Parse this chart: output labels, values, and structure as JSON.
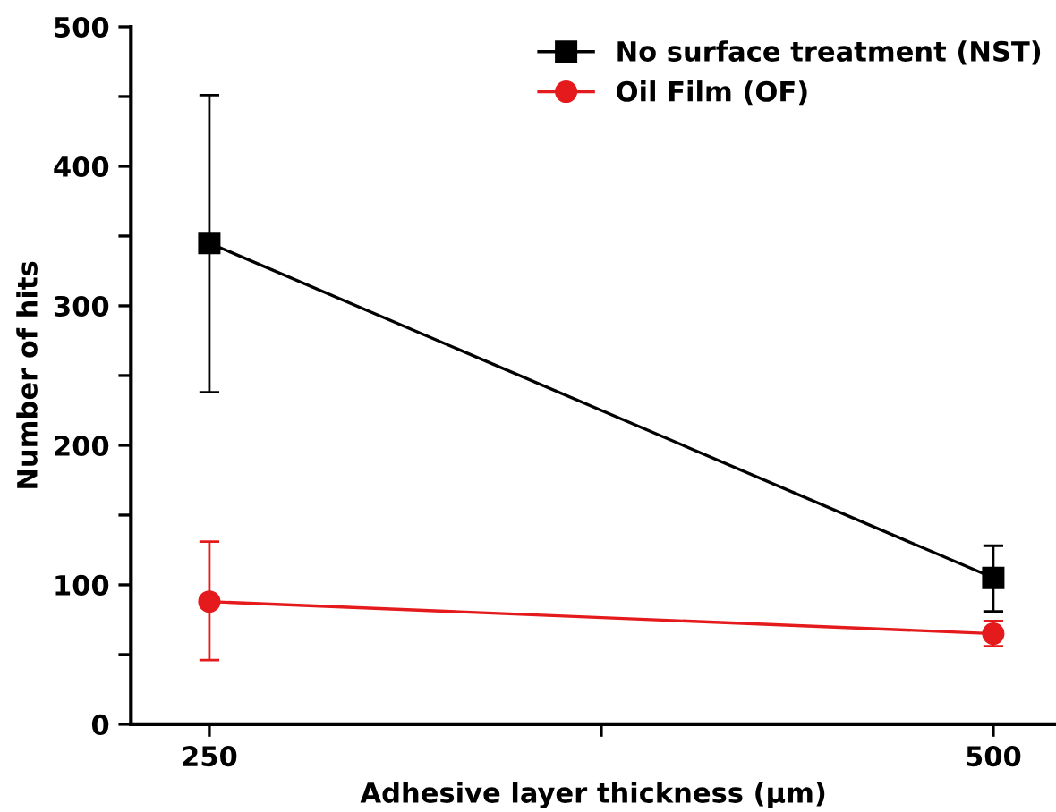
{
  "chart_data": {
    "type": "line",
    "xlabel": "Adhesive layer thickness (μm)",
    "ylabel": "Number of hits",
    "x": [
      250,
      500
    ],
    "series": [
      {
        "name": "No surface treatment (NST)",
        "color": "#000000",
        "marker": "square",
        "values": [
          345,
          105
        ],
        "errors": [
          [
            238,
            451
          ],
          [
            81,
            128
          ]
        ]
      },
      {
        "name": "Oil Film (OF)",
        "color": "#e41a1c",
        "marker": "circle",
        "values": [
          88,
          65
        ],
        "errors": [
          [
            46,
            131
          ],
          [
            56,
            74
          ]
        ]
      }
    ],
    "xlim": [
      225,
      520
    ],
    "xticks": [
      250,
      {
        "value": 375,
        "label": null
      },
      500
    ],
    "ylim": [
      0,
      500
    ],
    "yticks": [
      0,
      {
        "value": 50,
        "label": null
      },
      100,
      {
        "value": 150,
        "label": null
      },
      200,
      {
        "value": 250,
        "label": null
      },
      300,
      {
        "value": 350,
        "label": null
      },
      400,
      {
        "value": 450,
        "label": null
      },
      500
    ],
    "grid": false,
    "legend": "top right",
    "line_style": "solid"
  }
}
